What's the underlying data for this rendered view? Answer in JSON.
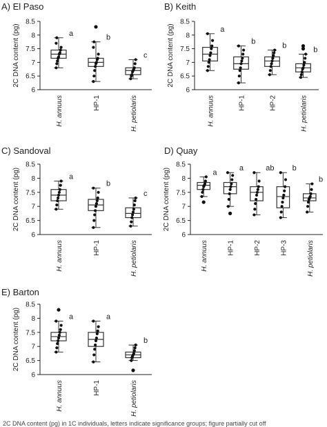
{
  "caption": "2C DNA content (pg) in 1C individuals, letters indicate significance groups; figure partially cut off",
  "colors": {
    "axis": "#222222",
    "box": "#333333",
    "point": "#111111",
    "text": "#222222"
  },
  "chart_data": [
    {
      "type": "box",
      "title": "A) El Paso",
      "ylabel": "2C DNA content (pg)",
      "ylim": [
        6,
        8.5
      ],
      "yticks": [
        "6",
        "6.5",
        "7",
        "7.5",
        "8",
        "8.5"
      ],
      "categories": [
        "H. annuus",
        "HP-1",
        "H. petiolaris"
      ],
      "category_italic": [
        true,
        false,
        true
      ],
      "boxes": [
        {
          "min": 6.8,
          "q1": 7.15,
          "median": 7.3,
          "q3": 7.45,
          "max": 7.9,
          "outliers": [],
          "points": [
            6.8,
            6.95,
            7.05,
            7.15,
            7.2,
            7.3,
            7.35,
            7.45,
            7.55,
            7.7,
            7.9
          ]
        },
        {
          "min": 6.3,
          "q1": 6.85,
          "median": 7.0,
          "q3": 7.15,
          "max": 7.75,
          "outliers": [
            8.3
          ],
          "points": [
            6.3,
            6.5,
            6.7,
            6.85,
            6.95,
            7.0,
            7.1,
            7.15,
            7.3,
            7.55,
            7.75,
            8.3
          ]
        },
        {
          "min": 6.4,
          "q1": 6.55,
          "median": 6.7,
          "q3": 6.8,
          "max": 7.1,
          "outliers": [],
          "points": [
            6.4,
            6.5,
            6.55,
            6.65,
            6.7,
            6.75,
            6.8,
            6.95,
            7.1
          ]
        }
      ],
      "letters": [
        "a",
        "b",
        "c"
      ]
    },
    {
      "type": "box",
      "title": "B) Keith",
      "ylabel": "2C DNA content (pg)",
      "ylim": [
        6,
        8.5
      ],
      "yticks": [
        "6",
        "6.5",
        "7",
        "7.5",
        "8",
        "8.5"
      ],
      "categories": [
        "H. annuus",
        "HP-1",
        "HP-2",
        "H. petiolaris"
      ],
      "category_italic": [
        true,
        false,
        false,
        true
      ],
      "boxes": [
        {
          "min": 6.7,
          "q1": 7.05,
          "median": 7.3,
          "q3": 7.55,
          "max": 8.05,
          "outliers": [],
          "points": [
            6.7,
            6.85,
            7.0,
            7.1,
            7.25,
            7.35,
            7.5,
            7.6,
            7.8,
            8.05
          ]
        },
        {
          "min": 6.25,
          "q1": 6.75,
          "median": 6.95,
          "q3": 7.2,
          "max": 7.6,
          "outliers": [],
          "points": [
            6.25,
            6.5,
            6.7,
            6.8,
            6.95,
            7.05,
            7.15,
            7.3,
            7.45,
            7.6
          ]
        },
        {
          "min": 6.55,
          "q1": 6.85,
          "median": 7.05,
          "q3": 7.2,
          "max": 7.45,
          "outliers": [],
          "points": [
            6.55,
            6.7,
            6.85,
            6.95,
            7.05,
            7.15,
            7.25,
            7.35,
            7.45
          ]
        },
        {
          "min": 6.45,
          "q1": 6.65,
          "median": 6.8,
          "q3": 6.95,
          "max": 7.3,
          "outliers": [
            7.5,
            7.6
          ],
          "points": [
            6.45,
            6.55,
            6.65,
            6.75,
            6.8,
            6.9,
            7.0,
            7.15,
            7.3,
            7.5,
            7.6
          ]
        }
      ],
      "letters": [
        "a",
        "b",
        "b",
        "b"
      ]
    },
    {
      "type": "box",
      "title": "C) Sandoval",
      "ylabel": "2C DNA content (pg)",
      "ylim": [
        6,
        8.5
      ],
      "yticks": [
        "6",
        "6.5",
        "7",
        "7.5",
        "8",
        "8.5"
      ],
      "categories": [
        "H. annuus",
        "HP-1",
        "H. petiolaris"
      ],
      "category_italic": [
        true,
        false,
        true
      ],
      "boxes": [
        {
          "min": 6.9,
          "q1": 7.2,
          "median": 7.4,
          "q3": 7.6,
          "max": 7.9,
          "outliers": [],
          "points": [
            6.9,
            7.05,
            7.2,
            7.3,
            7.4,
            7.5,
            7.6,
            7.75,
            7.9
          ]
        },
        {
          "min": 6.25,
          "q1": 6.85,
          "median": 7.05,
          "q3": 7.25,
          "max": 7.65,
          "outliers": [],
          "points": [
            6.25,
            6.5,
            6.7,
            6.85,
            7.0,
            7.1,
            7.2,
            7.3,
            7.5,
            7.65
          ]
        },
        {
          "min": 6.3,
          "q1": 6.6,
          "median": 6.75,
          "q3": 6.95,
          "max": 7.3,
          "outliers": [],
          "points": [
            6.3,
            6.45,
            6.6,
            6.7,
            6.8,
            6.9,
            7.05,
            7.2,
            7.3
          ]
        }
      ],
      "letters": [
        "a",
        "b",
        "c"
      ]
    },
    {
      "type": "box",
      "title": "D) Quay",
      "ylabel": "2C DNA content (pg)",
      "ylim": [
        6,
        8.5
      ],
      "yticks": [
        "6",
        "6.5",
        "7",
        "7.5",
        "8",
        "8.5"
      ],
      "categories": [
        "H. annuus",
        "HP-1",
        "HP-2",
        "HP-3",
        "H. petiolaris"
      ],
      "category_italic": [
        true,
        false,
        false,
        false,
        true
      ],
      "boxes": [
        {
          "min": 7.35,
          "q1": 7.6,
          "median": 7.75,
          "q3": 7.85,
          "max": 8.05,
          "outliers": [
            7.15
          ],
          "points": [
            7.15,
            7.35,
            7.5,
            7.6,
            7.7,
            7.75,
            7.8,
            7.9,
            8.05
          ]
        },
        {
          "min": 7.0,
          "q1": 7.45,
          "median": 7.7,
          "q3": 7.85,
          "max": 8.2,
          "outliers": [
            6.75
          ],
          "points": [
            6.75,
            7.0,
            7.25,
            7.45,
            7.6,
            7.7,
            7.8,
            7.95,
            8.1,
            8.2
          ]
        },
        {
          "min": 6.7,
          "q1": 7.2,
          "median": 7.5,
          "q3": 7.7,
          "max": 8.2,
          "outliers": [],
          "points": [
            6.7,
            6.9,
            7.1,
            7.25,
            7.4,
            7.5,
            7.6,
            7.7,
            7.9,
            8.2
          ]
        },
        {
          "min": 6.6,
          "q1": 6.95,
          "median": 7.35,
          "q3": 7.7,
          "max": 8.2,
          "outliers": [],
          "points": [
            6.6,
            6.8,
            7.0,
            7.15,
            7.3,
            7.4,
            7.55,
            7.7,
            7.95,
            8.2
          ]
        },
        {
          "min": 6.8,
          "q1": 7.2,
          "median": 7.3,
          "q3": 7.45,
          "max": 7.8,
          "outliers": [],
          "points": [
            6.8,
            7.0,
            7.15,
            7.25,
            7.3,
            7.35,
            7.45,
            7.6,
            7.8
          ]
        }
      ],
      "letters": [
        "a",
        "a",
        "ab",
        "b",
        "b"
      ]
    },
    {
      "type": "box",
      "title": "E) Barton",
      "ylabel": "2C DNA content (pg)",
      "ylim": [
        6,
        8.5
      ],
      "yticks": [
        "6",
        "6.5",
        "7",
        "7.5",
        "8",
        "8.5"
      ],
      "categories": [
        "H. annuus",
        "HP-1",
        "H. petiolaris"
      ],
      "category_italic": [
        true,
        false,
        true
      ],
      "boxes": [
        {
          "min": 6.8,
          "q1": 7.2,
          "median": 7.35,
          "q3": 7.5,
          "max": 7.9,
          "outliers": [
            8.3
          ],
          "points": [
            6.8,
            6.95,
            7.1,
            7.2,
            7.3,
            7.4,
            7.5,
            7.6,
            7.75,
            7.9,
            8.3
          ]
        },
        {
          "min": 6.45,
          "q1": 7.0,
          "median": 7.25,
          "q3": 7.5,
          "max": 7.9,
          "outliers": [],
          "points": [
            6.45,
            6.7,
            6.9,
            7.05,
            7.2,
            7.3,
            7.45,
            7.55,
            7.7,
            7.9
          ]
        },
        {
          "min": 6.5,
          "q1": 6.6,
          "median": 6.7,
          "q3": 6.8,
          "max": 7.05,
          "outliers": [
            6.15
          ],
          "points": [
            6.15,
            6.5,
            6.6,
            6.65,
            6.7,
            6.75,
            6.85,
            6.95,
            7.05
          ]
        }
      ],
      "letters": [
        "a",
        "a",
        "b"
      ]
    }
  ]
}
